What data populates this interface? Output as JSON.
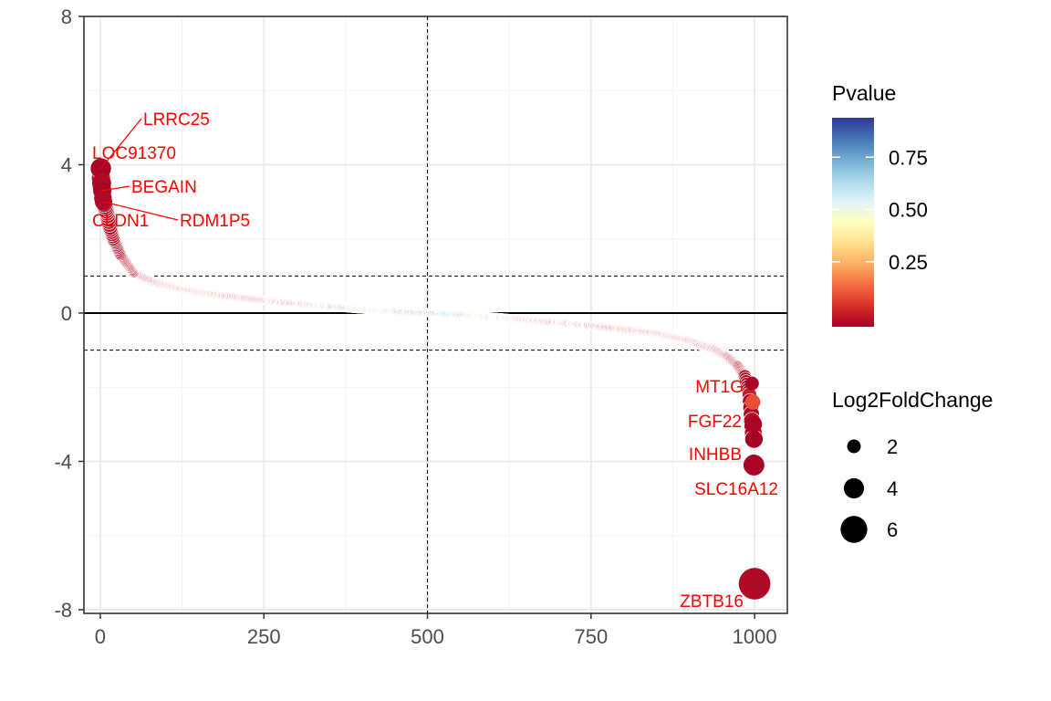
{
  "chart_data": {
    "type": "scatter",
    "title": "",
    "xlabel": "",
    "ylabel": "",
    "xlim": [
      0,
      1000
    ],
    "ylim": [
      -8,
      8
    ],
    "x_ticks": [
      "0",
      "250",
      "500",
      "750",
      "1000"
    ],
    "y_ticks": [
      "-8",
      "-4",
      "0",
      "4",
      "8"
    ],
    "grid": true,
    "reference_lines": {
      "y_solid": 0,
      "y_dashed": [
        1,
        -1
      ],
      "x_dashed": 500
    },
    "color_legend": {
      "title": "Pvalue",
      "labels": [
        "0.75",
        "0.50",
        "0.25"
      ],
      "values": [
        0.75,
        0.5,
        0.25
      ],
      "scale": "RdYlBu",
      "range": [
        0,
        1
      ]
    },
    "size_legend": {
      "title": "Log2FoldChange",
      "labels": [
        "2",
        "4",
        "6"
      ],
      "values": [
        2,
        4,
        6
      ]
    },
    "legend_placement": "right",
    "ranked_curve": {
      "n_points": 1000,
      "x": [
        0,
        2,
        5,
        10,
        15,
        20,
        30,
        50,
        80,
        120,
        180,
        250,
        320,
        400,
        450,
        500,
        550,
        600,
        650,
        700,
        750,
        800,
        850,
        900,
        940,
        960,
        975,
        985,
        992,
        996,
        999
      ],
      "y": [
        3.9,
        3.4,
        3.0,
        2.7,
        2.3,
        2.0,
        1.6,
        1.1,
        0.85,
        0.65,
        0.48,
        0.34,
        0.22,
        0.1,
        0.04,
        0.0,
        -0.04,
        -0.1,
        -0.18,
        -0.26,
        -0.34,
        -0.44,
        -0.55,
        -0.75,
        -1.0,
        -1.2,
        -1.45,
        -1.7,
        -2.2,
        -2.9,
        -3.4
      ]
    },
    "labeled_points": [
      {
        "label": "LRRC25",
        "x": 1,
        "y": 3.9,
        "pvalue": 0.01
      },
      {
        "label": "LOC91370",
        "x": 2,
        "y": 3.5,
        "pvalue": 0.02
      },
      {
        "label": "BEGAIN",
        "x": 3,
        "y": 3.3,
        "pvalue": 0.01
      },
      {
        "label": "CLDN1",
        "x": 4,
        "y": 3.1,
        "pvalue": 0.02
      },
      {
        "label": "RDM1P5",
        "x": 5,
        "y": 3.0,
        "pvalue": 0.02
      },
      {
        "label": "MT1G",
        "x": 996,
        "y": -1.9,
        "pvalue": 0.01
      },
      {
        "label": "FGF22",
        "x": 997,
        "y": -2.4,
        "pvalue": 0.15
      },
      {
        "label": "INHBB",
        "x": 998,
        "y": -3.0,
        "pvalue": 0.01
      },
      {
        "label": "SLC16A12",
        "x": 999,
        "y": -4.1,
        "pvalue": 0.01
      },
      {
        "label": "ZBTB16",
        "x": 1000,
        "y": -7.3,
        "pvalue": 0.02
      }
    ]
  }
}
